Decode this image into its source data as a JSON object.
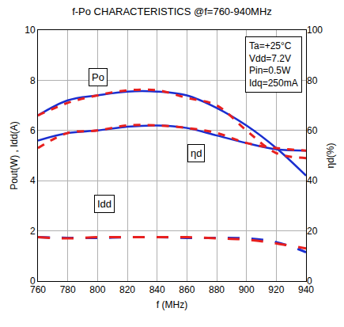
{
  "chart_data": {
    "type": "line",
    "title": "f-Po CHARACTERISTICS @f=760-940MHz",
    "x_label": "f (MHz)",
    "y_label": "Pout(W) , Idd(A)",
    "y2_label": "ηd(%)",
    "x": [
      760,
      780,
      800,
      820,
      840,
      860,
      880,
      900,
      920,
      940
    ],
    "xlim": [
      760,
      940
    ],
    "xticks": [
      760,
      780,
      800,
      820,
      840,
      860,
      880,
      900,
      920,
      940
    ],
    "ylim": [
      0,
      10
    ],
    "yticks": [
      0,
      2,
      4,
      6,
      8,
      10
    ],
    "y2lim": [
      0,
      100
    ],
    "y2ticks": [
      0,
      20,
      40,
      60,
      80,
      100
    ],
    "grid": true,
    "series": [
      {
        "color": "#1a2ed0",
        "line_style": "solid",
        "values": [
          6.6,
          7.2,
          7.4,
          7.55,
          7.55,
          7.4,
          6.9,
          6.2,
          5.3,
          4.2
        ]
      },
      {
        "color": "#e8201f",
        "line_style": "dash",
        "values": [
          6.6,
          7.1,
          7.4,
          7.6,
          7.6,
          7.3,
          7.0,
          6.0,
          5.1,
          4.9
        ]
      },
      {
        "color": "#1a2ed0",
        "line_style": "solid",
        "axis": "y2",
        "values": [
          56,
          59,
          60,
          61.5,
          62,
          61,
          58,
          55,
          52.5,
          52
        ]
      },
      {
        "color": "#e8201f",
        "line_style": "dash",
        "axis": "y2",
        "values": [
          53,
          59,
          60,
          62,
          62,
          61,
          59,
          55,
          53,
          52
        ]
      },
      {
        "color": "#1a2ed0",
        "line_style": "longdash",
        "values": [
          1.75,
          1.72,
          1.72,
          1.75,
          1.75,
          1.72,
          1.72,
          1.7,
          1.55,
          1.15
        ]
      },
      {
        "color": "#e8201f",
        "line_style": "longdash",
        "values": [
          1.75,
          1.7,
          1.75,
          1.75,
          1.75,
          1.75,
          1.7,
          1.65,
          1.5,
          1.3
        ]
      }
    ],
    "annotations": [
      "Po",
      "ηd",
      "Idd"
    ],
    "conditions": [
      "Ta=+25°C",
      "Vdd=7.2V",
      "Pin=0.5W",
      "Idq=250mA"
    ]
  }
}
